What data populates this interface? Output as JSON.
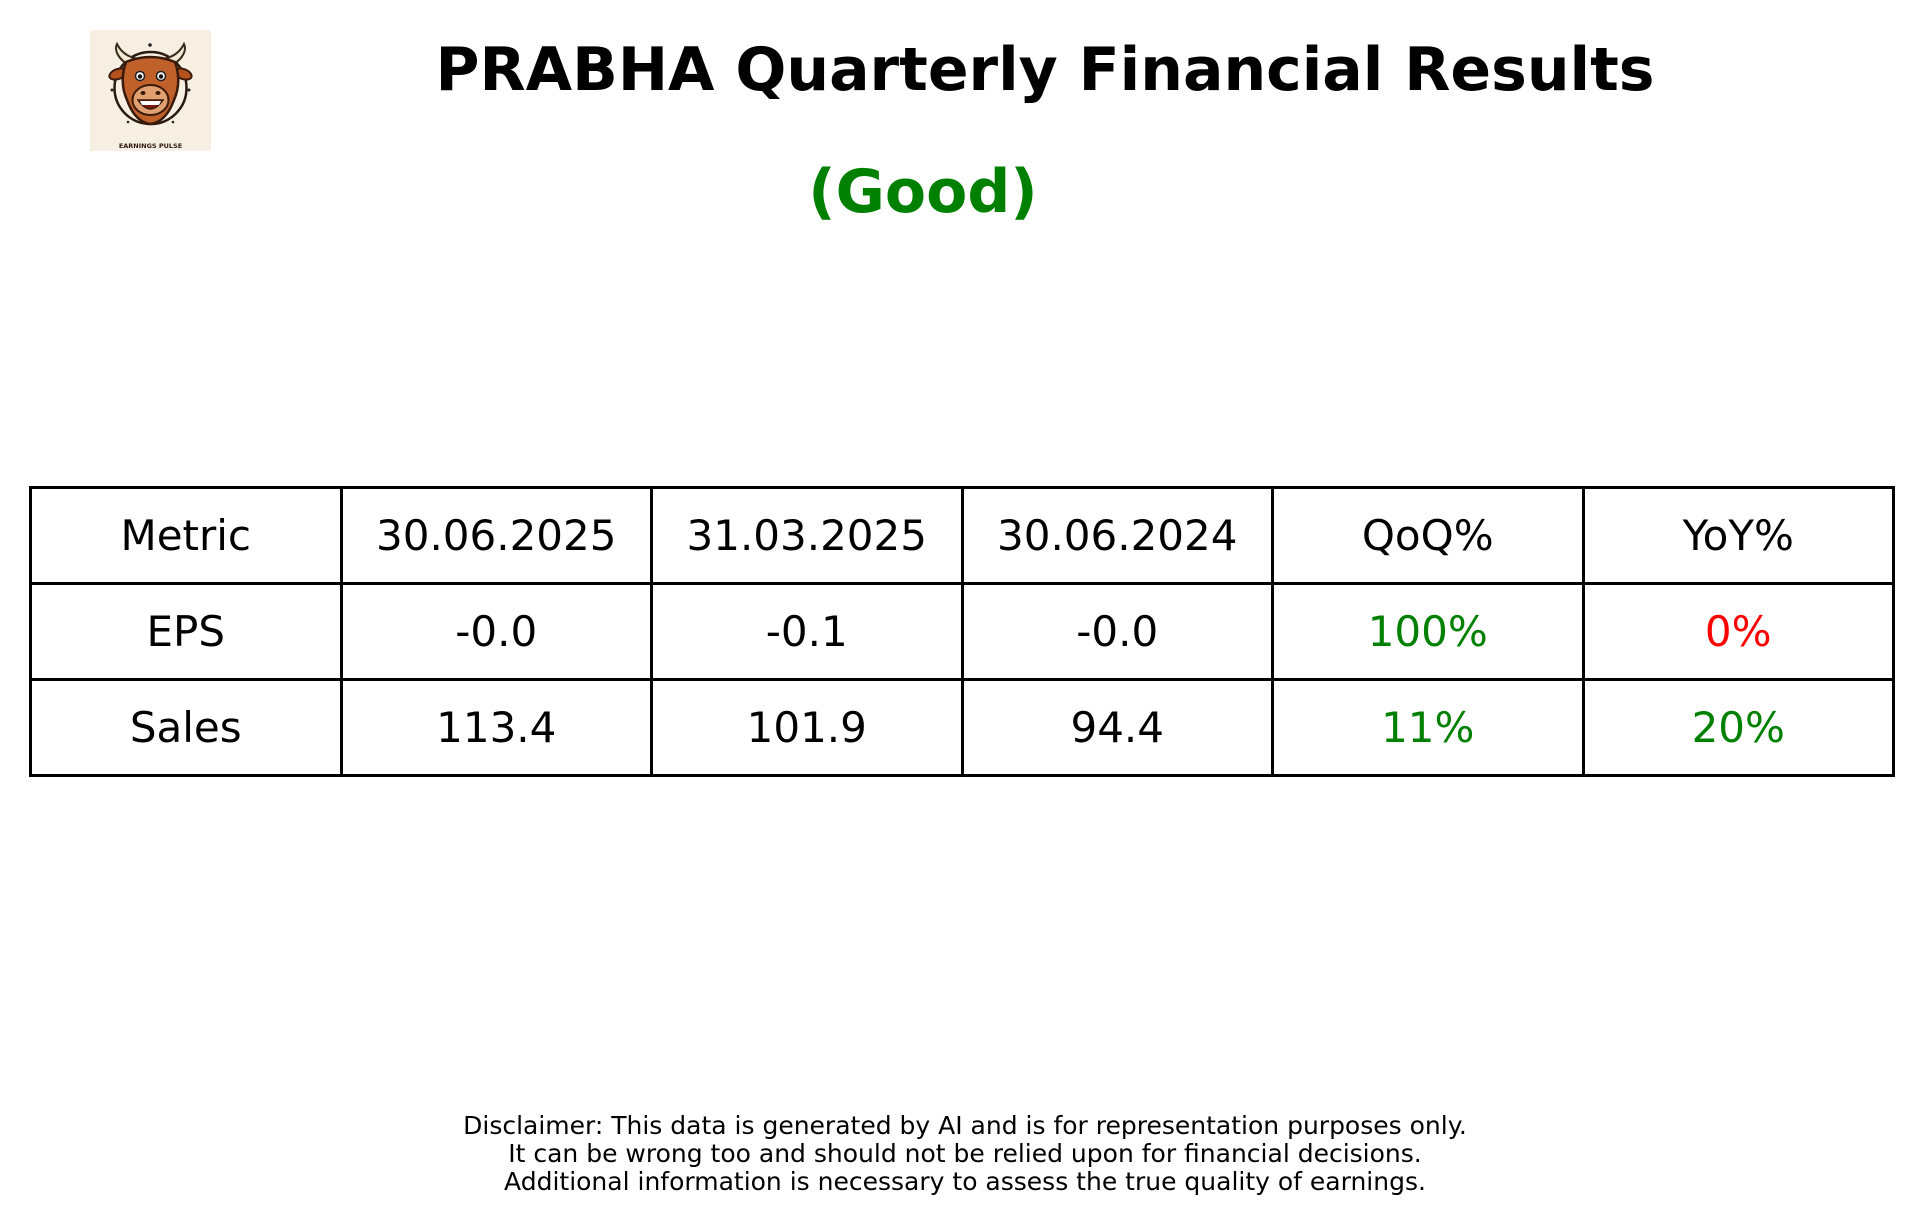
{
  "header": {
    "logo_caption": "EARNINGS PULSE",
    "title": "PRABHA Quarterly Financial Results",
    "rating": "(Good)"
  },
  "colors": {
    "rating_good": "#008000",
    "positive": "#008000",
    "negative": "#ff0000",
    "text": "#000000",
    "logo_background": "#f7efe2"
  },
  "table": {
    "columns": [
      "Metric",
      "30.06.2025",
      "31.03.2025",
      "30.06.2024",
      "QoQ%",
      "YoY%"
    ],
    "rows": [
      {
        "metric": "EPS",
        "values": [
          "-0.0",
          "-0.1",
          "-0.0"
        ],
        "qoq": "100%",
        "qoq_status": "positive",
        "yoy": "0%",
        "yoy_status": "negative"
      },
      {
        "metric": "Sales",
        "values": [
          "113.4",
          "101.9",
          "94.4"
        ],
        "qoq": "11%",
        "qoq_status": "positive",
        "yoy": "20%",
        "yoy_status": "positive"
      }
    ]
  },
  "disclaimer": {
    "lines": [
      "Disclaimer: This data is generated by AI and is for representation purposes only.",
      "It can be wrong too and should not be relied upon for financial decisions.",
      "Additional information is necessary to assess the true quality of earnings."
    ]
  }
}
